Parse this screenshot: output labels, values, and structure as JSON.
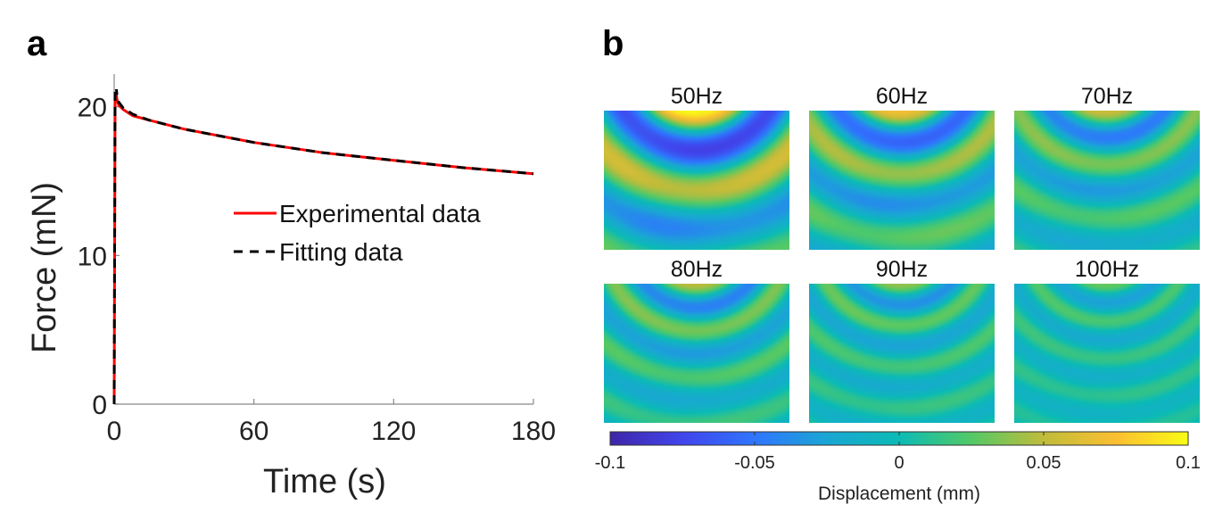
{
  "chart_data": [
    {
      "panel": "a",
      "type": "line",
      "xlabel": "Time (s)",
      "ylabel": "Force (mN)",
      "xlim": [
        0,
        180
      ],
      "ylim": [
        0,
        21
      ],
      "xticks": [
        0,
        60,
        120,
        180
      ],
      "yticks": [
        0,
        10,
        20
      ],
      "grid": false,
      "legend_position": "center-right",
      "series": [
        {
          "name": "Experimental data",
          "color": "#ff0000",
          "style": "solid",
          "x": [
            0,
            0.4,
            0.8,
            1.2,
            2,
            4,
            8,
            15,
            30,
            60,
            90,
            120,
            150,
            180
          ],
          "y": [
            0,
            20.2,
            20.9,
            20.5,
            20.1,
            19.8,
            19.4,
            19.1,
            18.5,
            17.6,
            16.9,
            16.4,
            15.9,
            15.5
          ]
        },
        {
          "name": "Fitting data",
          "color": "#000000",
          "style": "dashed",
          "x": [
            0,
            0.4,
            0.8,
            1.2,
            2,
            4,
            8,
            15,
            30,
            60,
            90,
            120,
            150,
            180
          ],
          "y": [
            0,
            21.0,
            21.4,
            20.8,
            20.3,
            19.9,
            19.5,
            19.1,
            18.5,
            17.6,
            16.9,
            16.4,
            15.9,
            15.5
          ]
        }
      ]
    },
    {
      "panel": "b",
      "type": "heatmap",
      "panels": [
        {
          "title": "50Hz",
          "wavelength": 0.58,
          "amplitude": 1.0
        },
        {
          "title": "60Hz",
          "wavelength": 0.46,
          "amplitude": 0.72
        },
        {
          "title": "70Hz",
          "wavelength": 0.39,
          "amplitude": 0.55
        },
        {
          "title": "80Hz",
          "wavelength": 0.34,
          "amplitude": 0.5
        },
        {
          "title": "90Hz",
          "wavelength": 0.3,
          "amplitude": 0.4
        },
        {
          "title": "100Hz",
          "wavelength": 0.27,
          "amplitude": 0.3
        }
      ],
      "colorbar": {
        "label": "Displacement (mm)",
        "range": [
          -0.1,
          0.1
        ],
        "ticks": [
          -0.1,
          -0.05,
          0,
          0.05,
          0.1
        ],
        "tick_labels": [
          "-0.1",
          "-0.05",
          "0",
          "0.05",
          "0.1"
        ],
        "colormap": [
          "#3e26a8",
          "#4145ec",
          "#2f75fe",
          "#1aa6d4",
          "#0bbbb5",
          "#53c966",
          "#c0bc3b",
          "#fbbf31",
          "#f9fb15"
        ]
      }
    }
  ]
}
